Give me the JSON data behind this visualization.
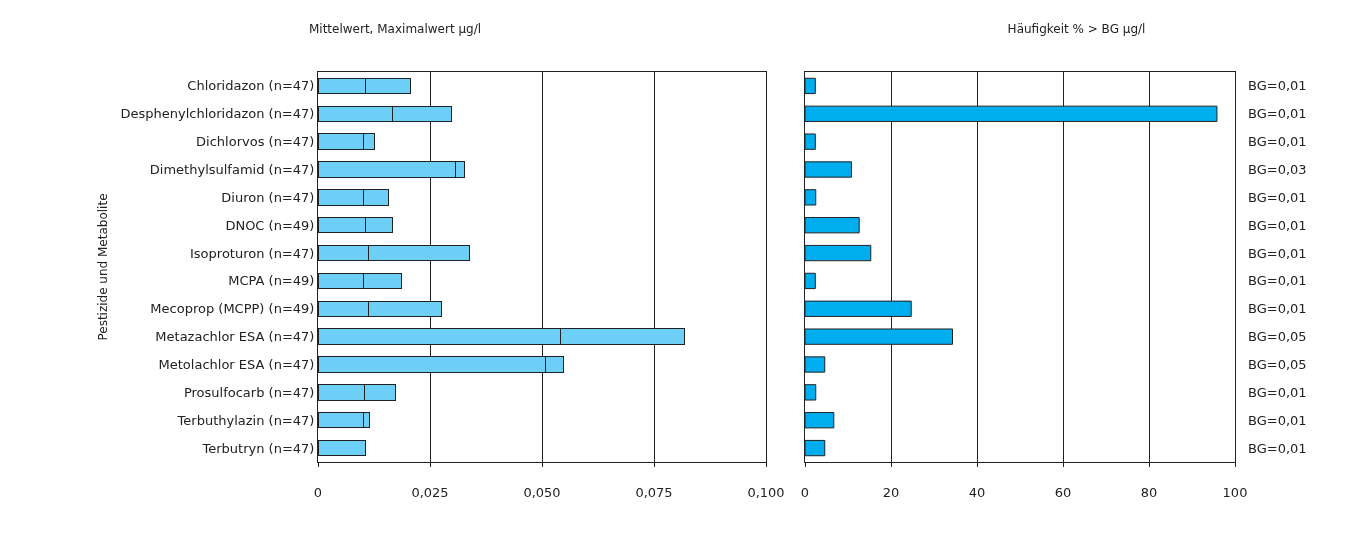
{
  "chart_data": [
    {
      "type": "bar",
      "orientation": "horizontal",
      "stacked": true,
      "title": "Mittelwert, Maximalwert µg/l",
      "ylabel": "Pestizide und Metabolite",
      "categories": [
        "Chloridazon (n=47)",
        "Desphenylchloridazon (n=47)",
        "Dichlorvos (n=47)",
        "Dimethylsulfamid (n=47)",
        "Diuron (n=47)",
        "DNOC (n=49)",
        "Isoproturon (n=47)",
        "MCPA (n=49)",
        "Mecoprop (MCPP) (n=49)",
        "Metazachlor ESA (n=47)",
        "Metolachlor ESA (n=47)",
        "Prosulfocarb (n=47)",
        "Terbuthylazin (n=47)",
        "Terbutryn (n=47)"
      ],
      "series": [
        {
          "color": "#6dcff6",
          "values": [
            0.0105,
            0.0166,
            0.0102,
            0.0306,
            0.0102,
            0.0107,
            0.0112,
            0.0102,
            0.0113,
            0.0542,
            0.0508,
            0.0103,
            0.0102,
            0.0105
          ]
        },
        {
          "color": "#6dcff6",
          "values": [
            0.0101,
            0.0131,
            0.0024,
            0.0021,
            0.0055,
            0.0059,
            0.0227,
            0.0084,
            0.0163,
            0.0277,
            0.0039,
            0.0071,
            0.0013,
            null
          ]
        }
      ],
      "xlim": [
        0,
        0.1
      ],
      "xticks": [
        0,
        {
          "value": 0.025,
          "label": "0,025"
        },
        {
          "value": 0.05,
          "label": "0,050"
        },
        {
          "value": 0.075,
          "label": "0,075"
        },
        {
          "value": 0.1,
          "label": "0,100"
        }
      ],
      "grid": "x"
    },
    {
      "type": "bar",
      "orientation": "horizontal",
      "title": "Häufigkeit % > BG µg/l",
      "categories": [
        null,
        null,
        null,
        null,
        null,
        null,
        null,
        null,
        null,
        null,
        null,
        null,
        null,
        null
      ],
      "y2_categories": [
        "BG=0,01",
        "BG=0,01",
        "BG=0,01",
        "BG=0,03",
        "BG=0,01",
        "BG=0,01",
        "BG=0,01",
        "BG=0,01",
        "BG=0,01",
        "BG=0,05",
        "BG=0,05",
        "BG=0,01",
        "BG=0,01",
        "BG=0,01"
      ],
      "color": "#00aeef",
      "values": [
        2.4,
        95.8,
        2.4,
        10.8,
        2.5,
        12.6,
        15.3,
        2.4,
        24.7,
        34.3,
        4.6,
        2.5,
        6.7,
        4.6
      ],
      "xlim": [
        0,
        100
      ],
      "xticks": [
        0,
        20,
        40,
        60,
        80,
        100
      ],
      "grid": "x"
    }
  ]
}
